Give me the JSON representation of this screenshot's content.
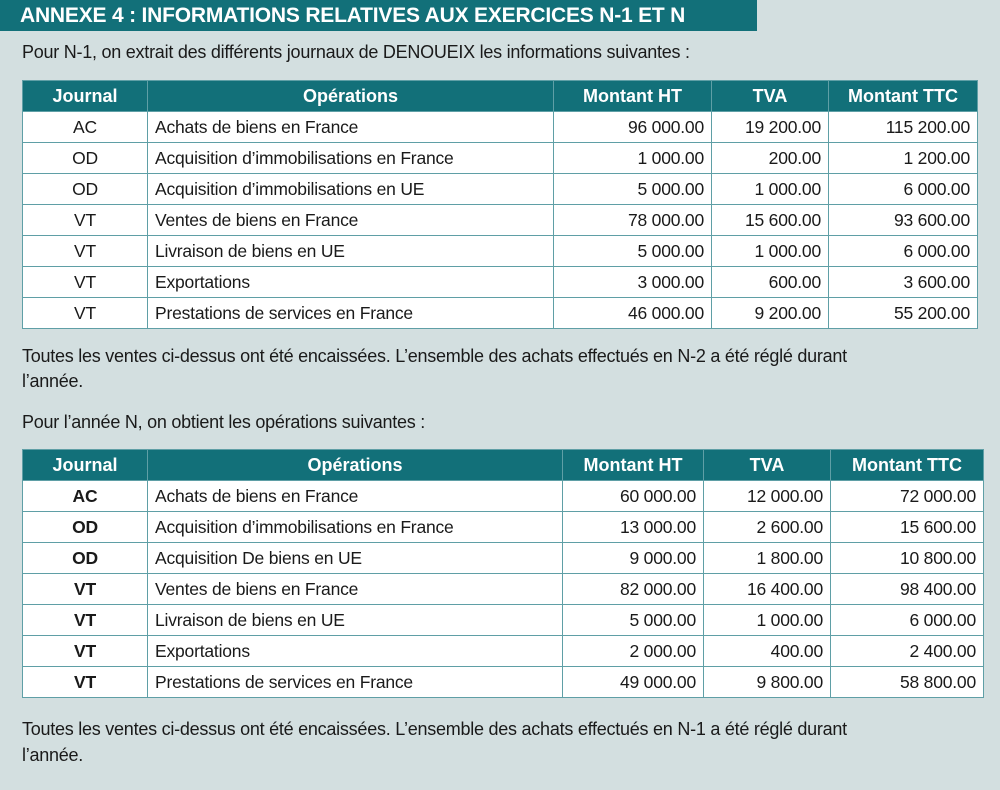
{
  "title": "ANNEXE 4 : INFORMATIONS RELATIVES AUX EXERCICES N-1 ET N",
  "intro_n1": "Pour N-1, on extrait des différents journaux de DENOUEIX les informations suivantes :",
  "headers": [
    "Journal",
    "Opérations",
    "Montant HT",
    "TVA",
    "Montant TTC"
  ],
  "table_n1": [
    [
      "AC",
      "Achats de biens en France",
      "96 000.00",
      "19 200.00",
      "115 200.00"
    ],
    [
      "OD",
      "Acquisition d’immobilisations en France",
      "1 000.00",
      "200.00",
      "1 200.00"
    ],
    [
      "OD",
      "Acquisition d’immobilisations en UE",
      "5 000.00",
      "1 000.00",
      "6 000.00"
    ],
    [
      "VT",
      "Ventes de biens en France",
      "78 000.00",
      "15 600.00",
      "93 600.00"
    ],
    [
      "VT",
      "Livraison de biens en UE",
      "5 000.00",
      "1 000.00",
      "6 000.00"
    ],
    [
      "VT",
      "Exportations",
      "3 000.00",
      "600.00",
      "3 600.00"
    ],
    [
      "VT",
      "Prestations de services en France",
      "46 000.00",
      "9 200.00",
      "55 200.00"
    ]
  ],
  "note_n1_line1": "Toutes les ventes ci-dessus ont été encaissées. L’ensemble des achats effectués en N-2 a été réglé durant",
  "note_n1_line2": "l’année.",
  "intro_n": "Pour l’année N, on obtient les opérations suivantes :",
  "table_n": [
    [
      "AC",
      "Achats de biens en France",
      "60 000.00",
      "12 000.00",
      "72 000.00"
    ],
    [
      "OD",
      "Acquisition d’immobilisations en France",
      "13 000.00",
      "2 600.00",
      "15 600.00"
    ],
    [
      "OD",
      "Acquisition De biens en UE",
      "9 000.00",
      "1 800.00",
      "10 800.00"
    ],
    [
      "VT",
      "Ventes de biens en France",
      "82 000.00",
      "16 400.00",
      "98 400.00"
    ],
    [
      "VT",
      "Livraison de biens en UE",
      "5 000.00",
      "1 000.00",
      "6 000.00"
    ],
    [
      "VT",
      "Exportations",
      "2 000.00",
      "400.00",
      "2 400.00"
    ],
    [
      "VT",
      "Prestations de services en France",
      "49 000.00",
      "9 800.00",
      "58 800.00"
    ]
  ],
  "note_n_line1": "Toutes les ventes ci-dessus ont été encaissées. L’ensemble des achats effectués en N-1 a été réglé durant",
  "note_n_line2": "l’année.",
  "colors": {
    "header": "#127079",
    "background": "#d3dfe0",
    "border": "#5f9fa6"
  }
}
